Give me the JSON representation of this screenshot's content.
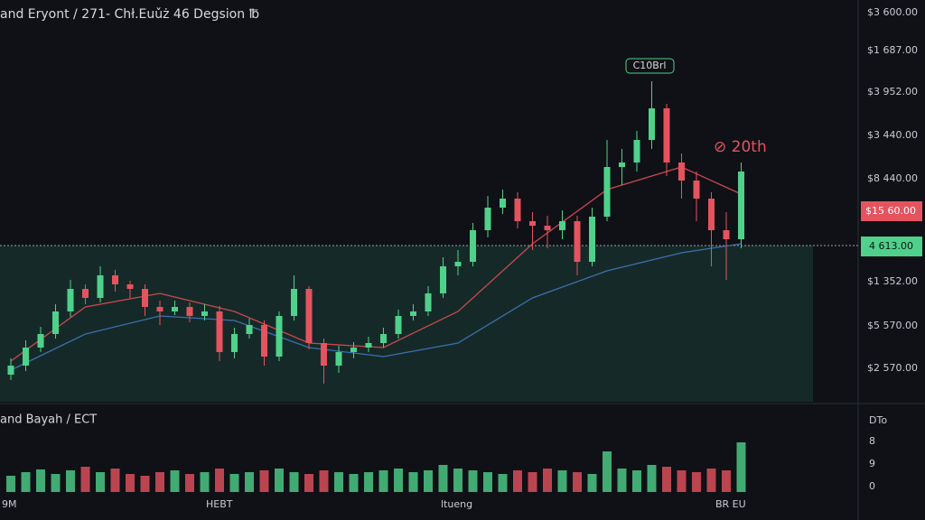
{
  "header": {
    "title": "and Eryont / 271- Chł.Euǔż 46 Degsion ℔"
  },
  "annotations": {
    "peak": "C10Brl",
    "target": "⊘ 20th"
  },
  "price_axis": [
    "$3 600.00",
    "$1 687.00",
    "$3 952.00",
    "$3 440.00",
    "$8 440.00",
    "$15 60.00",
    "4 613.00",
    "$1 352.00",
    "$5 570.00",
    "$2 570.00"
  ],
  "volume_pane": {
    "title": "and Bayah / ECT",
    "corner": "DTo",
    "axis": [
      "8",
      "9",
      "0"
    ]
  },
  "time_axis": [
    "9M",
    "HEBT",
    "ltueng",
    "BR EU"
  ],
  "chart_data": {
    "type": "candlestick",
    "up_color": "#4fd18b",
    "down_color": "#e5535f",
    "ylim": [
      0,
      445
    ],
    "candles": [
      [
        30,
        48,
        24,
        40
      ],
      [
        40,
        68,
        34,
        60
      ],
      [
        60,
        83,
        55,
        75
      ],
      [
        75,
        108,
        70,
        100
      ],
      [
        100,
        135,
        94,
        125
      ],
      [
        125,
        130,
        108,
        115
      ],
      [
        115,
        150,
        110,
        140
      ],
      [
        140,
        146,
        122,
        130
      ],
      [
        130,
        134,
        115,
        125
      ],
      [
        125,
        130,
        95,
        105
      ],
      [
        105,
        112,
        85,
        100
      ],
      [
        100,
        112,
        96,
        105
      ],
      [
        105,
        110,
        88,
        95
      ],
      [
        95,
        108,
        90,
        100
      ],
      [
        100,
        106,
        45,
        55
      ],
      [
        55,
        82,
        48,
        75
      ],
      [
        75,
        92,
        70,
        85
      ],
      [
        85,
        90,
        40,
        50
      ],
      [
        50,
        100,
        45,
        95
      ],
      [
        95,
        140,
        90,
        125
      ],
      [
        125,
        128,
        58,
        65
      ],
      [
        65,
        70,
        20,
        40
      ],
      [
        40,
        62,
        32,
        55
      ],
      [
        55,
        66,
        48,
        60
      ],
      [
        60,
        72,
        55,
        65
      ],
      [
        65,
        82,
        60,
        75
      ],
      [
        75,
        102,
        70,
        95
      ],
      [
        95,
        108,
        90,
        100
      ],
      [
        100,
        128,
        95,
        120
      ],
      [
        120,
        160,
        115,
        150
      ],
      [
        150,
        168,
        140,
        155
      ],
      [
        155,
        198,
        150,
        190
      ],
      [
        190,
        228,
        182,
        215
      ],
      [
        215,
        235,
        208,
        225
      ],
      [
        225,
        232,
        192,
        200
      ],
      [
        200,
        210,
        168,
        195
      ],
      [
        195,
        206,
        170,
        190
      ],
      [
        190,
        212,
        180,
        200
      ],
      [
        200,
        206,
        140,
        155
      ],
      [
        155,
        215,
        150,
        205
      ],
      [
        205,
        290,
        200,
        260
      ],
      [
        260,
        280,
        240,
        265
      ],
      [
        265,
        300,
        255,
        290
      ],
      [
        290,
        355,
        280,
        325
      ],
      [
        325,
        330,
        250,
        265
      ],
      [
        265,
        275,
        225,
        245
      ],
      [
        245,
        255,
        200,
        225
      ],
      [
        225,
        232,
        150,
        190
      ],
      [
        190,
        210,
        135,
        180
      ],
      [
        180,
        265,
        170,
        255
      ]
    ],
    "volume": [
      18,
      22,
      25,
      20,
      24,
      28,
      22,
      26,
      20,
      18,
      22,
      24,
      20,
      22,
      26,
      20,
      22,
      24,
      26,
      22,
      20,
      24,
      22,
      20,
      22,
      24,
      26,
      22,
      24,
      30,
      26,
      24,
      22,
      20,
      24,
      22,
      26,
      24,
      22,
      20,
      45,
      26,
      24,
      30,
      28,
      24,
      22,
      26,
      24,
      55
    ],
    "volume_ylim": [
      0,
      60
    ],
    "moving_averages": [
      {
        "color": "#c9484f",
        "x": [
          0,
          5,
          10,
          15,
          20,
          25,
          30,
          35,
          40,
          45,
          49
        ],
        "values": [
          45,
          105,
          120,
          100,
          65,
          60,
          100,
          175,
          235,
          260,
          230
        ]
      },
      {
        "color": "#3b6fb0",
        "x": [
          0,
          5,
          10,
          15,
          20,
          25,
          30,
          35,
          40,
          45,
          49
        ],
        "values": [
          35,
          75,
          95,
          90,
          60,
          50,
          65,
          115,
          145,
          165,
          175
        ]
      }
    ]
  }
}
